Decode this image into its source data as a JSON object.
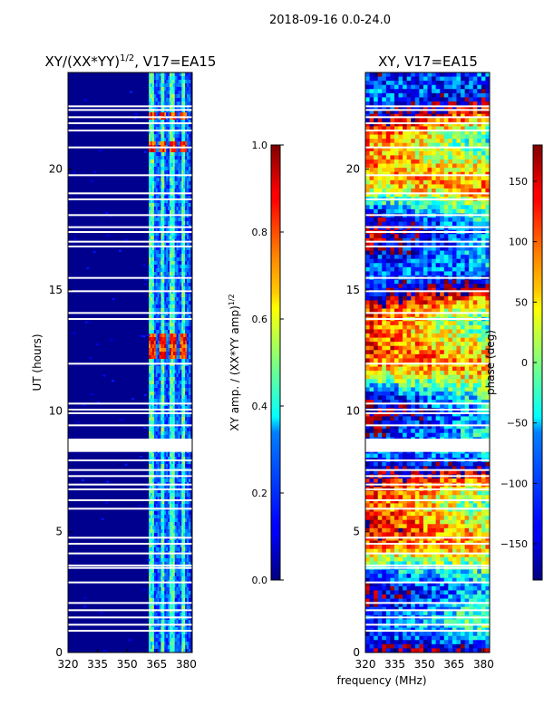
{
  "figure_title": "2018-09-16 0.0-24.0",
  "chart_data": [
    {
      "type": "heatmap",
      "title_main": "XY/(XX*YY)",
      "title_sup": "1/2",
      "title_rest": ", V17=EA15",
      "xlabel": "",
      "ylabel": "UT (hours)",
      "xlim": [
        320,
        383
      ],
      "ylim": [
        0,
        24
      ],
      "xticks": [
        320,
        335,
        350,
        365,
        380
      ],
      "yticks": [
        0,
        5,
        10,
        15,
        20
      ],
      "colorbar": {
        "label_main": "XY amp. / (XX*YY amp)",
        "label_sup": "1/2",
        "range": [
          0.0,
          1.0
        ],
        "ticks": [
          "0.0",
          "0.2",
          "0.4",
          "0.6",
          "0.8",
          "1.0"
        ],
        "tick_values": [
          0.0,
          0.2,
          0.4,
          0.6,
          0.8,
          1.0
        ]
      },
      "active_band_mhz": [
        361,
        382
      ],
      "peak_channels_mhz": [
        362.5,
        368,
        373,
        378.5
      ],
      "peak_hours": [
        12.4,
        12.8,
        13.0,
        20.95,
        22.2
      ],
      "peak_value_approx": 0.95,
      "background_value_approx": 0.03
    },
    {
      "type": "heatmap",
      "title": "XY, V17=EA15",
      "xlabel": "",
      "ylabel": "",
      "xlim": [
        320,
        383
      ],
      "ylim": [
        0,
        24
      ],
      "xticks": [
        320,
        335,
        350,
        365,
        380
      ],
      "yticks": [
        0,
        5,
        10,
        15,
        20
      ],
      "colorbar": {
        "label": "phase (deg)",
        "range": [
          -180,
          180
        ],
        "ticks": [
          "−150",
          "−100",
          "−50",
          "0",
          "50",
          "100",
          "150"
        ],
        "tick_values": [
          -150,
          -100,
          -50,
          0,
          50,
          100,
          150
        ]
      }
    }
  ],
  "shared_xlabel": "frequency (MHz)",
  "flagged_gaps_ut_hours": [
    0.9,
    1.15,
    1.45,
    1.75,
    2.05,
    2.9,
    3.5,
    3.6,
    4.1,
    4.5,
    4.75,
    5.95,
    6.3,
    6.75,
    6.95,
    7.3,
    7.55,
    7.95,
    8.5,
    8.6,
    9.4,
    9.9,
    10.05,
    10.3,
    11.95,
    13.8,
    14.05,
    14.95,
    15.5,
    16.8,
    17.0,
    17.4,
    17.6,
    18.1,
    18.75,
    19.0,
    19.75,
    20.9,
    21.6,
    21.9,
    22.15,
    22.45,
    22.6
  ],
  "wide_gap_ut_hours": [
    8.3,
    8.85
  ]
}
